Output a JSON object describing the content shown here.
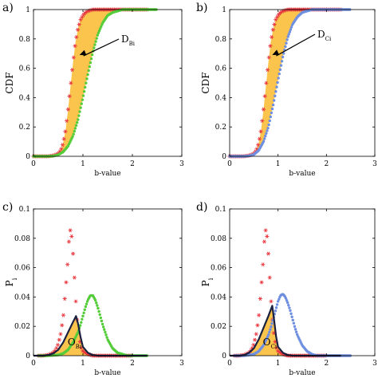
{
  "colors": {
    "red": "#e8373f",
    "green": "#55cc3a",
    "blue": "#6f8fe0",
    "fill": "#fbc44d",
    "outline": "#1a2140"
  },
  "chart_data": [
    {
      "type": "scatter",
      "panel_label": "a)",
      "xlabel": "b-value",
      "ylabel": "CDF",
      "xlim": [
        0,
        3
      ],
      "ylim": [
        0,
        1
      ],
      "xticks": [
        "0",
        "1",
        "2",
        "3"
      ],
      "yticks": [
        "0",
        "0.2",
        "0.4",
        "0.6",
        "0.8",
        "1"
      ],
      "annotation": {
        "main": "D",
        "sub": "Bi"
      },
      "series": [
        {
          "color": "red",
          "marker": "star",
          "points": [
            [
              0,
              0.0
            ],
            [
              0.1,
              0.0
            ],
            [
              0.2,
              0.0
            ],
            [
              0.3,
              0.0
            ],
            [
              0.4,
              0.005
            ],
            [
              0.5,
              0.018
            ],
            [
              0.55,
              0.04
            ],
            [
              0.6,
              0.09
            ],
            [
              0.65,
              0.18
            ],
            [
              0.7,
              0.32
            ],
            [
              0.75,
              0.48
            ],
            [
              0.8,
              0.64
            ],
            [
              0.85,
              0.78
            ],
            [
              0.9,
              0.87
            ],
            [
              0.95,
              0.93
            ],
            [
              1.0,
              0.96
            ],
            [
              1.05,
              0.98
            ],
            [
              1.1,
              0.99
            ],
            [
              1.2,
              1.0
            ],
            [
              1.3,
              1.0
            ],
            [
              1.5,
              1.0
            ],
            [
              1.7,
              1.0
            ],
            [
              1.9,
              1.0
            ],
            [
              2.1,
              1.0
            ],
            [
              2.3,
              1.0
            ]
          ]
        },
        {
          "color": "green",
          "marker": "dot",
          "points": [
            [
              0,
              0.0
            ],
            [
              0.1,
              0.0
            ],
            [
              0.2,
              0.0
            ],
            [
              0.3,
              0.0
            ],
            [
              0.4,
              0.002
            ],
            [
              0.5,
              0.01
            ],
            [
              0.6,
              0.03
            ],
            [
              0.7,
              0.07
            ],
            [
              0.8,
              0.14
            ],
            [
              0.9,
              0.25
            ],
            [
              1.0,
              0.4
            ],
            [
              1.1,
              0.56
            ],
            [
              1.2,
              0.71
            ],
            [
              1.3,
              0.83
            ],
            [
              1.4,
              0.91
            ],
            [
              1.5,
              0.96
            ],
            [
              1.6,
              0.98
            ],
            [
              1.7,
              0.99
            ],
            [
              1.8,
              1.0
            ],
            [
              2.0,
              1.0
            ],
            [
              2.2,
              1.0
            ],
            [
              2.4,
              1.0
            ],
            [
              2.5,
              1.0
            ]
          ]
        }
      ]
    },
    {
      "type": "scatter",
      "panel_label": "b)",
      "xlabel": "b-value",
      "ylabel": "CDF",
      "xlim": [
        0,
        3
      ],
      "ylim": [
        0,
        1
      ],
      "xticks": [
        "0",
        "1",
        "2",
        "3"
      ],
      "yticks": [
        "0",
        "0.2",
        "0.4",
        "0.6",
        "0.8",
        "1"
      ],
      "annotation": {
        "main": "D",
        "sub": "Ci"
      },
      "series": [
        {
          "color": "red",
          "marker": "star",
          "points": [
            [
              0,
              0.0
            ],
            [
              0.1,
              0.0
            ],
            [
              0.2,
              0.0
            ],
            [
              0.3,
              0.0
            ],
            [
              0.4,
              0.005
            ],
            [
              0.5,
              0.018
            ],
            [
              0.55,
              0.04
            ],
            [
              0.6,
              0.09
            ],
            [
              0.65,
              0.18
            ],
            [
              0.7,
              0.32
            ],
            [
              0.75,
              0.48
            ],
            [
              0.8,
              0.64
            ],
            [
              0.85,
              0.78
            ],
            [
              0.9,
              0.87
            ],
            [
              0.95,
              0.93
            ],
            [
              1.0,
              0.96
            ],
            [
              1.05,
              0.98
            ],
            [
              1.1,
              0.99
            ],
            [
              1.2,
              1.0
            ],
            [
              1.3,
              1.0
            ],
            [
              1.5,
              1.0
            ],
            [
              1.7,
              1.0
            ],
            [
              1.9,
              1.0
            ],
            [
              2.1,
              1.0
            ],
            [
              2.3,
              1.0
            ]
          ]
        },
        {
          "color": "blue",
          "marker": "dot",
          "points": [
            [
              0,
              0.0
            ],
            [
              0.1,
              0.0
            ],
            [
              0.2,
              0.0
            ],
            [
              0.3,
              0.0
            ],
            [
              0.4,
              0.003
            ],
            [
              0.5,
              0.012
            ],
            [
              0.6,
              0.04
            ],
            [
              0.7,
              0.1
            ],
            [
              0.8,
              0.2
            ],
            [
              0.9,
              0.35
            ],
            [
              1.0,
              0.52
            ],
            [
              1.1,
              0.68
            ],
            [
              1.2,
              0.81
            ],
            [
              1.3,
              0.9
            ],
            [
              1.4,
              0.95
            ],
            [
              1.5,
              0.98
            ],
            [
              1.6,
              0.99
            ],
            [
              1.7,
              1.0
            ],
            [
              1.9,
              1.0
            ],
            [
              2.1,
              1.0
            ],
            [
              2.3,
              1.0
            ],
            [
              2.5,
              1.0
            ]
          ]
        }
      ]
    },
    {
      "type": "scatter",
      "panel_label": "c)",
      "xlabel": "b-value",
      "ylabel": "P",
      "ylabel_sub": "i",
      "xlim": [
        0,
        3
      ],
      "ylim": [
        0,
        0.1
      ],
      "xticks": [
        "0",
        "1",
        "2",
        "3"
      ],
      "yticks": [
        "0",
        "0.02",
        "0.04",
        "0.06",
        "0.08",
        "0.1"
      ],
      "annotation": {
        "main": "O",
        "sub": "Bi"
      },
      "overlap_outline": [
        [
          0,
          0.0
        ],
        [
          0.2,
          0.0
        ],
        [
          0.3,
          0.0005
        ],
        [
          0.4,
          0.0015
        ],
        [
          0.5,
          0.004
        ],
        [
          0.6,
          0.009
        ],
        [
          0.7,
          0.016
        ],
        [
          0.8,
          0.023
        ],
        [
          0.86,
          0.027
        ],
        [
          0.9,
          0.022
        ],
        [
          0.95,
          0.013
        ],
        [
          1.0,
          0.006
        ],
        [
          1.1,
          0.002
        ],
        [
          1.2,
          0.0005
        ],
        [
          1.3,
          0.0
        ],
        [
          2.3,
          0.0
        ]
      ],
      "series": [
        {
          "color": "red",
          "marker": "star",
          "points": [
            [
              0.1,
              0.0
            ],
            [
              0.2,
              0.0
            ],
            [
              0.3,
              0.0005
            ],
            [
              0.4,
              0.002
            ],
            [
              0.45,
              0.004
            ],
            [
              0.5,
              0.008
            ],
            [
              0.55,
              0.015
            ],
            [
              0.6,
              0.026
            ],
            [
              0.63,
              0.038
            ],
            [
              0.66,
              0.05
            ],
            [
              0.69,
              0.063
            ],
            [
              0.71,
              0.075
            ],
            [
              0.73,
              0.084
            ],
            [
              0.75,
              0.086
            ],
            [
              0.77,
              0.082
            ],
            [
              0.79,
              0.075
            ],
            [
              0.81,
              0.064
            ],
            [
              0.83,
              0.052
            ],
            [
              0.85,
              0.04
            ],
            [
              0.87,
              0.03
            ],
            [
              0.89,
              0.022
            ],
            [
              0.92,
              0.013
            ],
            [
              0.96,
              0.006
            ],
            [
              1.0,
              0.003
            ],
            [
              1.1,
              0.001
            ],
            [
              1.2,
              0.0
            ],
            [
              1.4,
              0.0
            ],
            [
              1.6,
              0.0
            ],
            [
              1.8,
              0.0
            ],
            [
              2.0,
              0.0
            ]
          ]
        },
        {
          "color": "green",
          "marker": "dot",
          "points": [
            [
              0.1,
              0.0
            ],
            [
              0.3,
              0.0
            ],
            [
              0.5,
              0.0005
            ],
            [
              0.6,
              0.0015
            ],
            [
              0.7,
              0.004
            ],
            [
              0.8,
              0.009
            ],
            [
              0.9,
              0.016
            ],
            [
              0.95,
              0.021
            ],
            [
              1.0,
              0.027
            ],
            [
              1.05,
              0.033
            ],
            [
              1.1,
              0.038
            ],
            [
              1.15,
              0.041
            ],
            [
              1.2,
              0.041
            ],
            [
              1.25,
              0.038
            ],
            [
              1.3,
              0.033
            ],
            [
              1.35,
              0.027
            ],
            [
              1.4,
              0.021
            ],
            [
              1.45,
              0.016
            ],
            [
              1.5,
              0.011
            ],
            [
              1.6,
              0.005
            ],
            [
              1.7,
              0.002
            ],
            [
              1.8,
              0.001
            ],
            [
              1.9,
              0.0
            ],
            [
              2.1,
              0.0
            ],
            [
              2.3,
              0.0
            ]
          ]
        }
      ]
    },
    {
      "type": "scatter",
      "panel_label": "d)",
      "xlabel": "b-value",
      "ylabel": "P",
      "ylabel_sub": "i",
      "xlim": [
        0,
        3
      ],
      "ylim": [
        0,
        0.1
      ],
      "xticks": [
        "0",
        "1",
        "2",
        "3"
      ],
      "yticks": [
        "0",
        "0.02",
        "0.04",
        "0.06",
        "0.08",
        "0.1"
      ],
      "annotation": {
        "main": "O",
        "sub": "Ci"
      },
      "overlap_outline": [
        [
          0,
          0.0
        ],
        [
          0.2,
          0.0
        ],
        [
          0.3,
          0.0005
        ],
        [
          0.4,
          0.002
        ],
        [
          0.5,
          0.005
        ],
        [
          0.6,
          0.011
        ],
        [
          0.7,
          0.019
        ],
        [
          0.8,
          0.027
        ],
        [
          0.88,
          0.034
        ],
        [
          0.92,
          0.024
        ],
        [
          0.96,
          0.013
        ],
        [
          1.0,
          0.006
        ],
        [
          1.1,
          0.002
        ],
        [
          1.2,
          0.0005
        ],
        [
          1.3,
          0.0
        ],
        [
          2.3,
          0.0
        ]
      ],
      "series": [
        {
          "color": "red",
          "marker": "star",
          "points": [
            [
              0.1,
              0.0
            ],
            [
              0.2,
              0.0
            ],
            [
              0.3,
              0.0005
            ],
            [
              0.4,
              0.002
            ],
            [
              0.45,
              0.004
            ],
            [
              0.5,
              0.008
            ],
            [
              0.55,
              0.015
            ],
            [
              0.6,
              0.026
            ],
            [
              0.63,
              0.038
            ],
            [
              0.66,
              0.05
            ],
            [
              0.69,
              0.063
            ],
            [
              0.71,
              0.075
            ],
            [
              0.73,
              0.084
            ],
            [
              0.75,
              0.086
            ],
            [
              0.77,
              0.082
            ],
            [
              0.79,
              0.075
            ],
            [
              0.81,
              0.064
            ],
            [
              0.83,
              0.052
            ],
            [
              0.85,
              0.04
            ],
            [
              0.87,
              0.03
            ],
            [
              0.89,
              0.022
            ],
            [
              0.92,
              0.013
            ],
            [
              0.96,
              0.006
            ],
            [
              1.0,
              0.003
            ],
            [
              1.1,
              0.001
            ],
            [
              1.2,
              0.0
            ],
            [
              1.4,
              0.0
            ],
            [
              1.6,
              0.0
            ],
            [
              1.8,
              0.0
            ],
            [
              2.0,
              0.0
            ]
          ]
        },
        {
          "color": "blue",
          "marker": "dot",
          "points": [
            [
              0.1,
              0.0
            ],
            [
              0.3,
              0.0
            ],
            [
              0.5,
              0.001
            ],
            [
              0.6,
              0.003
            ],
            [
              0.7,
              0.007
            ],
            [
              0.8,
              0.014
            ],
            [
              0.85,
              0.019
            ],
            [
              0.9,
              0.025
            ],
            [
              0.95,
              0.031
            ],
            [
              1.0,
              0.037
            ],
            [
              1.05,
              0.041
            ],
            [
              1.1,
              0.042
            ],
            [
              1.15,
              0.04
            ],
            [
              1.2,
              0.036
            ],
            [
              1.25,
              0.031
            ],
            [
              1.3,
              0.025
            ],
            [
              1.35,
              0.019
            ],
            [
              1.4,
              0.014
            ],
            [
              1.5,
              0.007
            ],
            [
              1.6,
              0.003
            ],
            [
              1.7,
              0.001
            ],
            [
              1.8,
              0.0
            ],
            [
              2.0,
              0.0
            ],
            [
              2.2,
              0.0
            ],
            [
              2.5,
              0.0
            ]
          ]
        }
      ]
    }
  ]
}
